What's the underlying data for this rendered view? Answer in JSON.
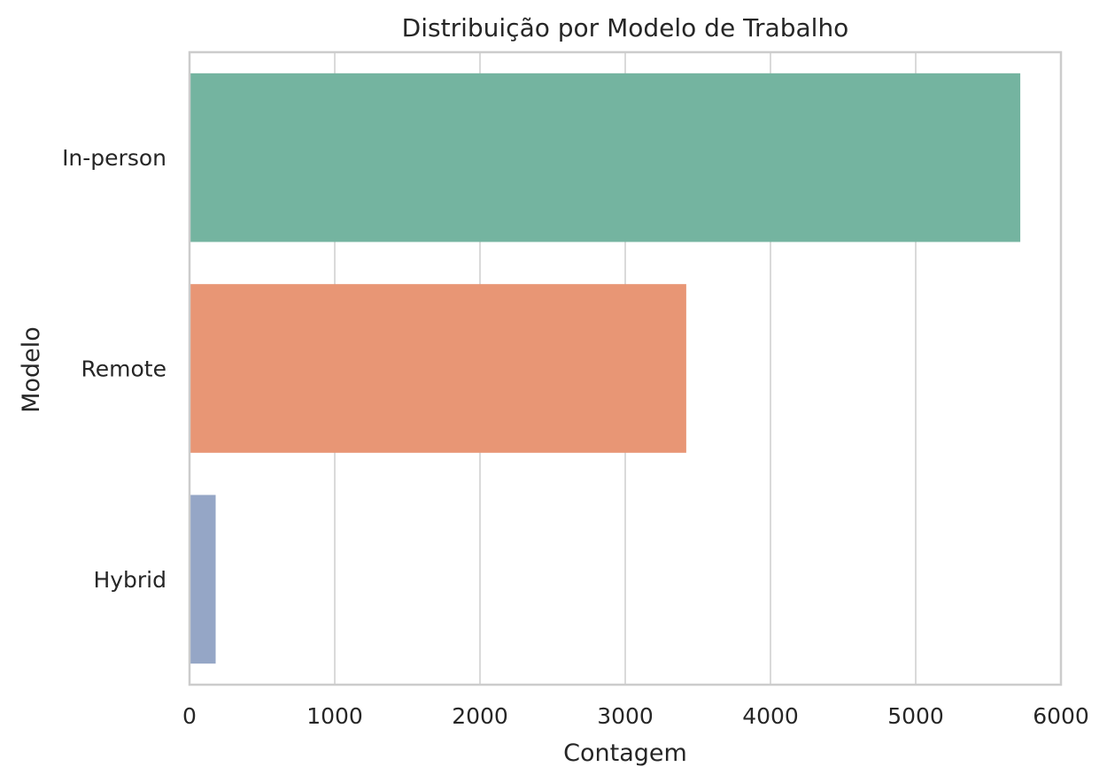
{
  "chart_data": {
    "type": "bar",
    "orientation": "horizontal",
    "title": "Distribuição por Modelo de Trabalho",
    "xlabel": "Contagem",
    "ylabel": "Modelo",
    "categories": [
      "In-person",
      "Remote",
      "Hybrid"
    ],
    "values": [
      5720,
      3420,
      180
    ],
    "colors": [
      "#74b4a0",
      "#e89675",
      "#95a6c6"
    ],
    "xlim": [
      0,
      6000
    ],
    "xticks": [
      0,
      1000,
      2000,
      3000,
      4000,
      5000,
      6000
    ],
    "xtick_labels": [
      "0",
      "1000",
      "2000",
      "3000",
      "4000",
      "5000",
      "6000"
    ],
    "grid": "vertical",
    "legend": "none"
  }
}
